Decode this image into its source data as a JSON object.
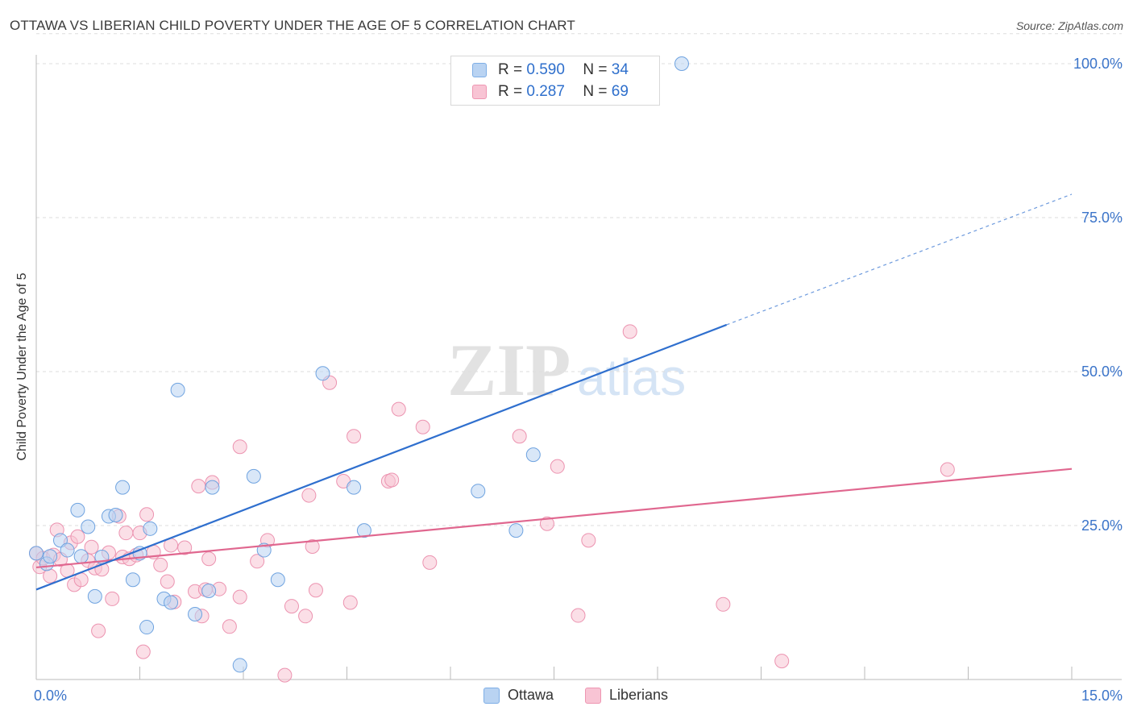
{
  "title": "OTTAWA VS LIBERIAN CHILD POVERTY UNDER THE AGE OF 5 CORRELATION CHART",
  "source": "Source: ZipAtlas.com",
  "watermark": {
    "zip": "ZIP",
    "atlas": "atlas"
  },
  "legend_stats": [
    {
      "r_label": "R =",
      "r_value": "0.590",
      "n_label": "N =",
      "n_value": "34"
    },
    {
      "r_label": "R =",
      "r_value": "0.287",
      "n_label": "N =",
      "n_value": "69"
    }
  ],
  "bottom_legend": [
    "Ottawa",
    "Liberians"
  ],
  "colors": {
    "ottawa_fill": "#b9d3f2",
    "ottawa_stroke": "#6fa3e0",
    "ottawa_line": "#2f6fce",
    "liberian_fill": "#f8c4d4",
    "liberian_stroke": "#ec93b0",
    "liberian_line": "#e0678f",
    "tick_label": "#3b74c9",
    "grid": "#dddddd"
  },
  "chart_data": {
    "type": "scatter",
    "title": "OTTAWA VS LIBERIAN CHILD POVERTY UNDER THE AGE OF 5 CORRELATION CHART",
    "xlabel": "",
    "ylabel": "Child Poverty Under the Age of 5",
    "xlim": [
      0,
      15
    ],
    "ylim": [
      0,
      105
    ],
    "x_tick_labels": [
      "0.0%",
      "15.0%"
    ],
    "y_tick_labels": [
      "100.0%",
      "75.0%",
      "50.0%",
      "25.0%"
    ],
    "y_ticks": [
      100,
      75,
      50,
      25
    ],
    "grid": true,
    "legend_position": "top-center",
    "series": [
      {
        "name": "Ottawa",
        "r": 0.59,
        "n": 34,
        "trend": {
          "x": [
            0,
            10.0
          ],
          "y": [
            14.6,
            57.6
          ],
          "dashed_to": [
            15,
            78.8
          ]
        },
        "points": [
          [
            0.0,
            20.5
          ],
          [
            0.15,
            18.8
          ],
          [
            0.2,
            20.0
          ],
          [
            0.35,
            22.6
          ],
          [
            0.45,
            21.0
          ],
          [
            0.6,
            27.5
          ],
          [
            0.65,
            20.0
          ],
          [
            0.75,
            24.8
          ],
          [
            0.85,
            13.5
          ],
          [
            0.95,
            19.9
          ],
          [
            1.05,
            26.5
          ],
          [
            1.15,
            26.7
          ],
          [
            1.25,
            31.2
          ],
          [
            1.4,
            16.2
          ],
          [
            1.5,
            20.5
          ],
          [
            1.6,
            8.5
          ],
          [
            1.65,
            24.5
          ],
          [
            1.85,
            13.1
          ],
          [
            1.95,
            12.5
          ],
          [
            2.05,
            47.0
          ],
          [
            2.3,
            10.6
          ],
          [
            2.5,
            14.4
          ],
          [
            2.55,
            31.2
          ],
          [
            2.95,
            2.3
          ],
          [
            3.15,
            33.0
          ],
          [
            3.3,
            21.0
          ],
          [
            3.5,
            16.2
          ],
          [
            4.15,
            49.7
          ],
          [
            4.6,
            31.2
          ],
          [
            4.75,
            24.2
          ],
          [
            6.4,
            30.6
          ],
          [
            6.95,
            24.2
          ],
          [
            7.2,
            36.5
          ],
          [
            9.35,
            100.0
          ]
        ]
      },
      {
        "name": "Liberians",
        "r": 0.287,
        "n": 69,
        "trend": {
          "x": [
            0,
            15
          ],
          "y": [
            18.2,
            34.2
          ]
        },
        "points": [
          [
            0.0,
            20.5
          ],
          [
            0.05,
            18.3
          ],
          [
            0.1,
            19.7
          ],
          [
            0.2,
            16.8
          ],
          [
            0.25,
            20.2
          ],
          [
            0.3,
            24.3
          ],
          [
            0.35,
            19.5
          ],
          [
            0.45,
            17.7
          ],
          [
            0.5,
            22.2
          ],
          [
            0.55,
            15.4
          ],
          [
            0.6,
            23.2
          ],
          [
            0.65,
            16.2
          ],
          [
            0.75,
            19.3
          ],
          [
            0.8,
            21.5
          ],
          [
            0.85,
            18.1
          ],
          [
            0.9,
            7.9
          ],
          [
            0.95,
            17.9
          ],
          [
            1.05,
            20.6
          ],
          [
            1.1,
            13.1
          ],
          [
            1.2,
            26.5
          ],
          [
            1.25,
            19.9
          ],
          [
            1.3,
            23.8
          ],
          [
            1.35,
            19.6
          ],
          [
            1.45,
            20.2
          ],
          [
            1.5,
            23.8
          ],
          [
            1.55,
            4.5
          ],
          [
            1.6,
            26.8
          ],
          [
            1.7,
            20.7
          ],
          [
            1.8,
            18.6
          ],
          [
            1.9,
            15.9
          ],
          [
            1.95,
            21.8
          ],
          [
            2.0,
            12.6
          ],
          [
            2.15,
            21.4
          ],
          [
            2.3,
            14.3
          ],
          [
            2.35,
            31.4
          ],
          [
            2.4,
            10.3
          ],
          [
            2.45,
            14.6
          ],
          [
            2.5,
            19.6
          ],
          [
            2.65,
            14.7
          ],
          [
            2.8,
            8.6
          ],
          [
            2.95,
            13.4
          ],
          [
            2.95,
            37.8
          ],
          [
            3.2,
            19.2
          ],
          [
            3.35,
            22.6
          ],
          [
            3.6,
            0.7
          ],
          [
            3.7,
            11.9
          ],
          [
            3.9,
            10.3
          ],
          [
            3.95,
            29.9
          ],
          [
            4.0,
            21.6
          ],
          [
            4.05,
            14.5
          ],
          [
            4.25,
            48.2
          ],
          [
            4.45,
            32.2
          ],
          [
            4.55,
            12.5
          ],
          [
            4.6,
            39.5
          ],
          [
            5.1,
            32.2
          ],
          [
            5.25,
            43.9
          ],
          [
            5.6,
            41.0
          ],
          [
            5.7,
            19.0
          ],
          [
            7.0,
            39.5
          ],
          [
            7.4,
            25.3
          ],
          [
            7.55,
            34.6
          ],
          [
            7.85,
            10.4
          ],
          [
            8.0,
            22.6
          ],
          [
            8.6,
            56.5
          ],
          [
            9.95,
            12.2
          ],
          [
            10.8,
            3.0
          ],
          [
            13.2,
            34.1
          ],
          [
            5.15,
            32.4
          ],
          [
            2.55,
            32.0
          ]
        ]
      }
    ]
  }
}
